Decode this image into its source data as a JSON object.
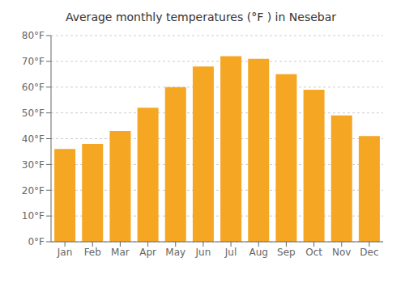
{
  "chart_data": {
    "type": "bar",
    "title": "Average monthly temperatures (°F ) in Nesebar",
    "categories": [
      "Jan",
      "Feb",
      "Mar",
      "Apr",
      "May",
      "Jun",
      "Jul",
      "Aug",
      "Sep",
      "Oct",
      "Nov",
      "Dec"
    ],
    "values": [
      36,
      38,
      43,
      52,
      60,
      68,
      72,
      71,
      65,
      59,
      49,
      41
    ],
    "color": "#F5A623",
    "ylim": [
      0,
      80
    ],
    "yticks": [
      {
        "value": 0,
        "label": "0°F"
      },
      {
        "value": 10,
        "label": "10°F"
      },
      {
        "value": 20,
        "label": "20°F"
      },
      {
        "value": 30,
        "label": "30°F"
      },
      {
        "value": 40,
        "label": "40°F"
      },
      {
        "value": 50,
        "label": "50°F"
      },
      {
        "value": 60,
        "label": "60°F"
      },
      {
        "value": 70,
        "label": "70°F"
      },
      {
        "value": 80,
        "label": "80°F"
      }
    ],
    "grid": true
  }
}
